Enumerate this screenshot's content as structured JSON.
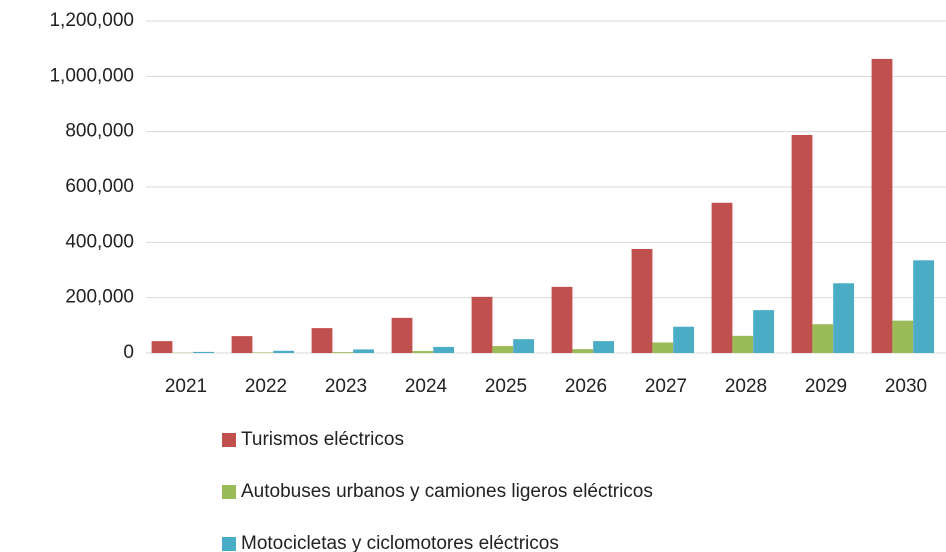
{
  "chart_data": {
    "type": "bar",
    "categories": [
      "2021",
      "2022",
      "2023",
      "2024",
      "2025",
      "2026",
      "2027",
      "2028",
      "2029",
      "2030"
    ],
    "series": [
      {
        "name": "Turismos eléctricos",
        "color": "#c0504d",
        "values": [
          43000,
          61000,
          90000,
          127000,
          203000,
          239000,
          376000,
          543000,
          788000,
          1063000
        ]
      },
      {
        "name": "Autobuses urbanos y camiones ligeros eléctricos",
        "color": "#9bbb59",
        "values": [
          1000,
          2000,
          3000,
          7000,
          25000,
          14000,
          38000,
          62000,
          104000,
          117000
        ]
      },
      {
        "name": "Motocicletas y ciclomotores eléctricos",
        "color": "#4bacc6",
        "values": [
          4000,
          8000,
          13000,
          22000,
          50000,
          43000,
          95000,
          155000,
          252000,
          335000
        ]
      }
    ],
    "ylim": [
      0,
      1200000
    ],
    "yticks": [
      0,
      {
        "value": 200000,
        "label": "200,000"
      },
      {
        "value": 400000,
        "label": "400,000"
      },
      {
        "value": 600000,
        "label": "600,000"
      },
      {
        "value": 800000,
        "label": "800,000"
      },
      {
        "value": 1000000,
        "label": "1,000,000"
      },
      {
        "value": 1200000,
        "label": "1,200,000"
      }
    ],
    "grid": true,
    "legend": "bottom"
  }
}
